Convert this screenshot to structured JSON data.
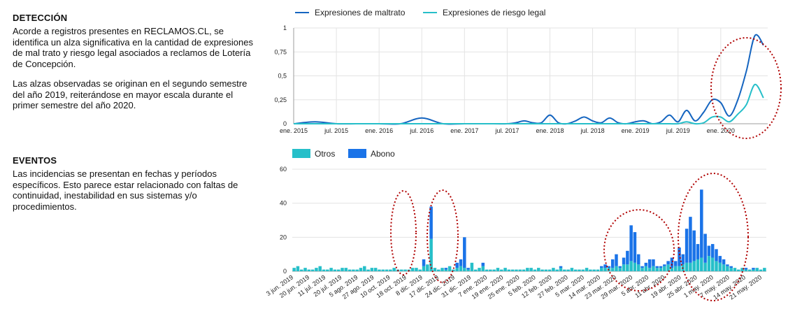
{
  "sections": {
    "deteccion": {
      "title": "DETECCIÓN",
      "para1": "Acorde a registros presentes en RECLAMOS.CL, se identifica un alza significativa en la cantidad de expresiones de mal trato y riesgo legal asociados a reclamos de Lotería de Concepción.",
      "para2": "Las alzas observadas se originan en el segundo semestre del año 2019, reiterándose en mayor escala durante el primer semestre del año 2020."
    },
    "eventos": {
      "title": "EVENTOS",
      "para1": "Las incidencias se presentan en fechas y períodos específicos. Esto parece estar relacionado con faltas de continuidad, inestabilidad en sus sistemas y/o procedimientos."
    }
  },
  "chart_data": [
    {
      "type": "line",
      "title": "",
      "xlabel": "",
      "ylabel": "",
      "ylim": [
        0,
        1
      ],
      "y_ticks": [
        "0",
        "0,25",
        "0,5",
        "0,75",
        "1"
      ],
      "x_ticks": [
        "ene. 2015",
        "jul. 2015",
        "ene. 2016",
        "jul. 2016",
        "ene. 2017",
        "jul. 2017",
        "ene. 2018",
        "jul. 2018",
        "ene. 2019",
        "jul. 2019",
        "ene. 2020"
      ],
      "x": [
        2015.0,
        2015.25,
        2015.5,
        2015.75,
        2016.0,
        2016.25,
        2016.5,
        2016.75,
        2017.0,
        2017.25,
        2017.5,
        2017.6,
        2017.7,
        2017.8,
        2017.9,
        2018.0,
        2018.1,
        2018.2,
        2018.3,
        2018.4,
        2018.5,
        2018.6,
        2018.7,
        2018.8,
        2018.9,
        2019.0,
        2019.1,
        2019.2,
        2019.3,
        2019.4,
        2019.5,
        2019.6,
        2019.7,
        2019.8,
        2019.9,
        2020.0,
        2020.1,
        2020.2,
        2020.3,
        2020.4,
        2020.5
      ],
      "series": [
        {
          "name": "Expresiones de maltrato",
          "color": "#1565c0",
          "values": [
            0,
            0.02,
            0,
            0,
            0,
            0,
            0.06,
            0,
            0,
            0,
            0,
            0.01,
            0.03,
            0.01,
            0.01,
            0.09,
            0.01,
            0,
            0.03,
            0.07,
            0.03,
            0.01,
            0.06,
            0.01,
            0,
            0.02,
            0.03,
            0,
            0.02,
            0.09,
            0.02,
            0.14,
            0.03,
            0.12,
            0.25,
            0.22,
            0.08,
            0.25,
            0.55,
            0.92,
            0.82
          ]
        },
        {
          "name": "Expresiones de riesgo legal",
          "color": "#26bfc9",
          "values": [
            0,
            0,
            0,
            0,
            0,
            0,
            0,
            0,
            0,
            0,
            0,
            0,
            0,
            0,
            0,
            0,
            0,
            0,
            0,
            0,
            0,
            0,
            0,
            0,
            0,
            0,
            0,
            0,
            0,
            0,
            0,
            0.02,
            0,
            0.01,
            0.07,
            0.07,
            0.02,
            0.1,
            0.2,
            0.41,
            0.27
          ]
        }
      ],
      "legend": "top",
      "highlight": "ene. 2020"
    },
    {
      "type": "bar",
      "stacked": true,
      "title": "",
      "xlabel": "",
      "ylabel": "",
      "ylim": [
        0,
        60
      ],
      "y_ticks": [
        "0",
        "20",
        "40",
        "60"
      ],
      "x_ticks": [
        "3 jun. 2019",
        "20 jun. 2019",
        "11 jul. 2019",
        "20 jul. 2019",
        "5 ago. 2019",
        "27 ago. 2019",
        "10 oct. 2019",
        "18 oct. 2019",
        "8 dic. 2019",
        "17 dic. 2019",
        "24 dic. 2019",
        "31 dic. 2019",
        "7 ene. 2020",
        "19 ene. 2020",
        "25 ene. 2020",
        "5 feb. 2020",
        "12 feb. 2020",
        "27 feb. 2020",
        "5 mar. 2020",
        "14 mar. 2020",
        "23 mar. 2020",
        "29 mar. 2020",
        "5 abr. 2020",
        "11 abr. 2020",
        "19 abr. 2020",
        "25 abr. 2020",
        "1 may. 2020",
        "7 may. 2020",
        "14 may. 2020",
        "21 may. 2020"
      ],
      "series": [
        {
          "name": "Otros",
          "color": "#26bfc9",
          "values": [
            2,
            3,
            1,
            2,
            1,
            1,
            2,
            3,
            1,
            1,
            2,
            1,
            1,
            2,
            2,
            1,
            1,
            1,
            2,
            3,
            1,
            2,
            2,
            1,
            1,
            1,
            1,
            2,
            1,
            1,
            1,
            1,
            2,
            2,
            1,
            3,
            4,
            19,
            2,
            1,
            2,
            1,
            3,
            1,
            2,
            3,
            2,
            1,
            5,
            1,
            2,
            3,
            1,
            1,
            1,
            2,
            1,
            2,
            1,
            1,
            1,
            1,
            1,
            2,
            2,
            1,
            2,
            1,
            1,
            1,
            2,
            1,
            2,
            1,
            1,
            2,
            1,
            1,
            1,
            2,
            1,
            1,
            1,
            2,
            2,
            2,
            2,
            3,
            2,
            4,
            4,
            6,
            5,
            4,
            2,
            3,
            2,
            3,
            2,
            2,
            3,
            4,
            2,
            3,
            3,
            4,
            5,
            5,
            6,
            7,
            8,
            5,
            9,
            8,
            6,
            5,
            4,
            3,
            2,
            2,
            1,
            2,
            1,
            1,
            1,
            2,
            1,
            2
          ]
        },
        {
          "name": "Abono",
          "color": "#1a73e8",
          "values": [
            0,
            0,
            0,
            0,
            0,
            0,
            0,
            0,
            0,
            0,
            0,
            0,
            0,
            0,
            0,
            0,
            0,
            0,
            0,
            0,
            0,
            0,
            0,
            0,
            0,
            0,
            0,
            0,
            0,
            0,
            0,
            0,
            0,
            0,
            0,
            4,
            0,
            19,
            0,
            0,
            0,
            1,
            0,
            0,
            3,
            4,
            18,
            1,
            0,
            0,
            0,
            2,
            0,
            0,
            0,
            0,
            0,
            0,
            0,
            0,
            0,
            0,
            0,
            0,
            0,
            0,
            0,
            0,
            0,
            0,
            0,
            0,
            1,
            0,
            0,
            0,
            0,
            0,
            0,
            0,
            0,
            0,
            0,
            1,
            2,
            1,
            5,
            7,
            1,
            4,
            8,
            21,
            18,
            6,
            1,
            2,
            5,
            4,
            1,
            1,
            1,
            2,
            6,
            3,
            11,
            6,
            20,
            27,
            18,
            9,
            40,
            17,
            6,
            8,
            7,
            4,
            3,
            1,
            1,
            0,
            0,
            0,
            1,
            0,
            1,
            0,
            0,
            0
          ]
        }
      ],
      "legend": "top-left",
      "highlights": [
        "18 oct. 2019",
        "24 dic. 2019",
        "29 mar. 2020",
        "1 may. 2020"
      ]
    }
  ]
}
